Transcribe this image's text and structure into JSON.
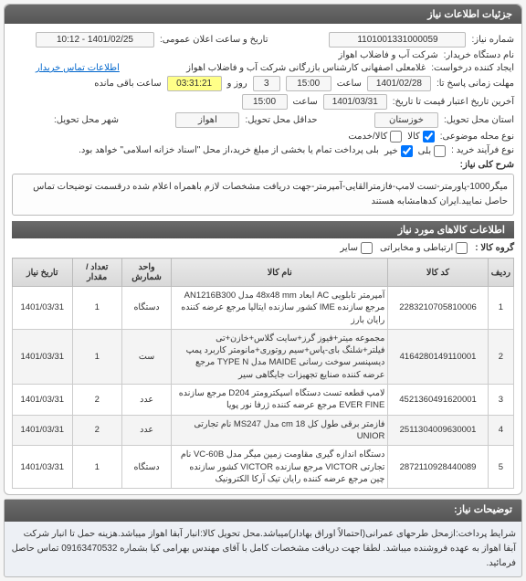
{
  "panel_title": "جزئیات اطلاعات نیاز",
  "fields": {
    "need_number_label": "شماره نیاز:",
    "need_number": "1101001331000059",
    "announce_datetime_label": "تاریخ و ساعت اعلان عمومی:",
    "announce_datetime": "1401/02/25 - 10:12",
    "org_label": "نام دستگاه خریدار:",
    "org": "شرکت آب و فاضلاب اهواز",
    "requester_label": "ایجاد کننده درخواست:",
    "requester": "غلامعلی اصفهانی کارشناس بازرگانی شرکت آب و فاضلاب اهواز",
    "buyer_contact_link": "اطلاعات تماس خریدار",
    "respond_deadline_label": "مهلت زمانی پاسخ تا:",
    "respond_date": "1401/02/28",
    "time_label": "ساعت",
    "respond_time": "15:00",
    "days_label": "روز و",
    "days_value": "3",
    "remaining_label": "ساعت باقی مانده",
    "remaining_time": "03:31:21",
    "validity_label": "آخرین تاریخ اعتبار قیمت تا تاریخ:",
    "validity_date": "1401/03/31",
    "validity_time": "15:00",
    "area_label": "استان محل تحویل:",
    "area": "خوزستان",
    "delivery_location_label": "حداقل محل تحویل:",
    "delivery_location": "اهواز",
    "city_label": "شهر محل تحویل:",
    "subject_type_label": "نوع محله موضوعی:",
    "cb1": "کالا",
    "cb2": "کالا/خدمت",
    "process_label": "نوع فرآیند خرید :",
    "process_text": "بلی پرداخت تمام یا بخشی از مبلغ خرید،از محل \"اسناد خزانه اسلامی\" خواهد بود.",
    "cb_yes": "بلی",
    "cb_no": "خیر",
    "general_desc_label": "شرح کلی نیاز:",
    "general_desc": "میگر1000-پاورمتر-تست لامپ-فازمترالقایی-آمپرمتر-جهت دریافت مشخصات لازم باهمراه اعلام شده درقسمت توضیحات تماس حاصل نمایید.ایران کدهامشابه هستند",
    "items_header": "اطلاعات کالاهای مورد نیاز",
    "group_label": "گروه کالا :",
    "group_opt1": "ارتباطی و مخابراتی",
    "group_opt2": "سایر"
  },
  "table": {
    "columns": [
      "ردیف",
      "کد کالا",
      "نام کالا",
      "واحد شمارش",
      "تعداد / مقدار",
      "تاریخ نیاز"
    ],
    "rows": [
      [
        "1",
        "2283210705810006",
        "آمپرمتر تابلویی AC ابعاد 48x48 mm مدل AN1216B300 مرجع سازنده IME کشور سازنده ایتالیا مرجع عرضه کننده رایان بارز",
        "دستگاه",
        "1",
        "1401/03/31"
      ],
      [
        "2",
        "4164280149110001",
        "مجموعه میتر+فیوز گرز+سایت گلاس+خازن+تی فیلتر+شلنگ بای-پاس+سیم روتوری+مانومتر کاربرد پمپ دیسپنسر سوخت رسانی MAIDE مدل TYPE N مرجع عرضه کننده صنایع تجهیزات جایگاهی سیر",
        "ست",
        "1",
        "1401/03/31"
      ],
      [
        "3",
        "4521360491620001",
        "لامپ قطعه تست دستگاه اسپکترومتر D204 مرجع سازنده EVER FINE مرجع عرضه کننده ژرفا نور پویا",
        "عدد",
        "2",
        "1401/03/31"
      ],
      [
        "4",
        "2511304009630001",
        "فازمتر برقی طول کل 18 cm مدل MS247 نام تجارتی UNIOR",
        "عدد",
        "2",
        "1401/03/31"
      ],
      [
        "5",
        "2872110928440089",
        "دستگاه اندازه گیری مقاومت زمین میگر مدل VC-60B نام تجارتی VICTOR مرجع سازنده VICTOR کشور سازنده چین مرجع عرضه کننده رایان تیک آرکا الکترونیک",
        "دستگاه",
        "1",
        "1401/03/31"
      ]
    ]
  },
  "footer": {
    "conditions_label": "توضیحات نیاز:",
    "text": "شرایط پرداخت:ازمحل طرحهای عمرانی(احتمالاً اوراق بهادار)میباشد.محل تحویل کالا:انبار آبفا اهواز میباشد.هزینه حمل تا انبار شرکت آبفا اهواز به عهده فروشنده میباشد. لطفا جهت دریافت مشخصات کامل با آقای مهندس بهرامی کیا بشماره 09163470532 تماس حاصل فرمائید."
  }
}
